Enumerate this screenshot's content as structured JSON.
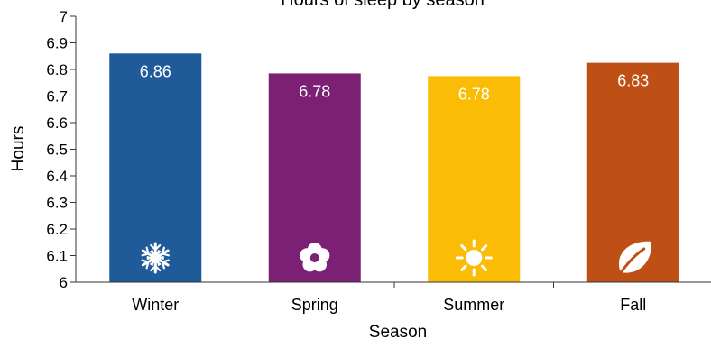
{
  "chart_data": {
    "type": "bar",
    "title": "Hours of sleep by season",
    "xlabel": "Season",
    "ylabel": "Hours",
    "categories": [
      "Winter",
      "Spring",
      "Summer",
      "Fall"
    ],
    "values": [
      6.86,
      6.785,
      6.775,
      6.825
    ],
    "data_labels": [
      "6.86",
      "6.78",
      "6.78",
      "6.83"
    ],
    "colors": [
      "#1f5b99",
      "#7b2074",
      "#fbbc05",
      "#bf5015"
    ],
    "icons": [
      "snowflake-icon",
      "flower-icon",
      "sun-icon",
      "leaf-icon"
    ],
    "ylim": [
      6,
      7
    ],
    "yticks": [
      "6",
      "6.1",
      "6.2",
      "6.3",
      "6.4",
      "6.5",
      "6.6",
      "6.7",
      "6.8",
      "6.9",
      "7"
    ],
    "grid": false,
    "legend": "none"
  }
}
